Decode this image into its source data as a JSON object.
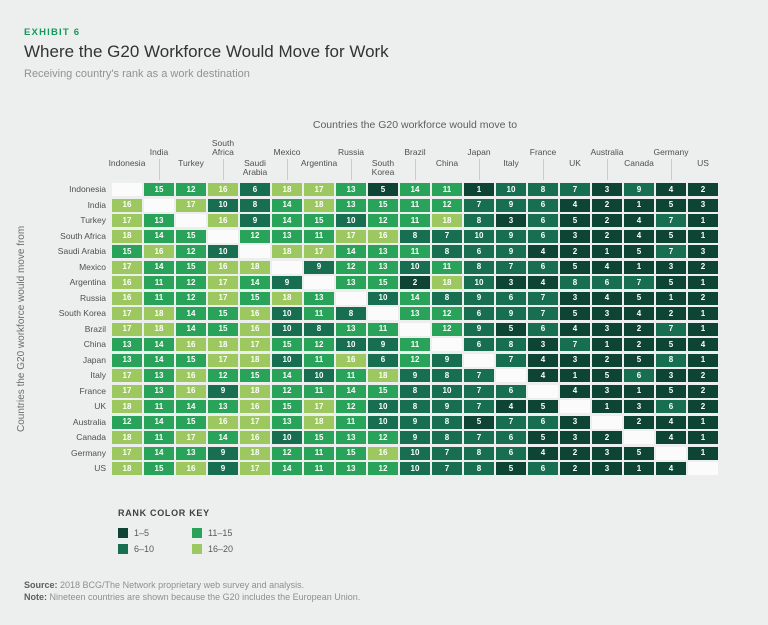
{
  "exhibit": {
    "eyebrow": "EXHIBIT 6"
  },
  "chart_data": {
    "type": "heatmap",
    "title": "Where the G20 Workforce Would Move for Work",
    "subtitle": "Receiving country's rank as a work destination",
    "x_axis_label": "Countries the G20 workforce would move to",
    "y_axis_label": "Countries the G20 workforce would move from",
    "legend_title": "RANK COLOR KEY",
    "color_bins": [
      {
        "label": "1–5",
        "min": 1,
        "max": 5,
        "color": "#0d4434"
      },
      {
        "label": "6–10",
        "min": 6,
        "max": 10,
        "color": "#176e50"
      },
      {
        "label": "11–15",
        "min": 11,
        "max": 15,
        "color": "#29a35a"
      },
      {
        "label": "16–20",
        "min": 16,
        "max": 20,
        "color": "#9dc75f"
      }
    ],
    "columns": [
      "Indonesia",
      "India",
      "Turkey",
      "South Africa",
      "Saudi Arabia",
      "Mexico",
      "Argentina",
      "Russia",
      "South Korea",
      "Brazil",
      "China",
      "Japan",
      "Italy",
      "France",
      "UK",
      "Australia",
      "Canada",
      "Germany",
      "US"
    ],
    "rows": [
      "Indonesia",
      "India",
      "Turkey",
      "South Africa",
      "Saudi Arabia",
      "Mexico",
      "Argentina",
      "Russia",
      "South Korea",
      "Brazil",
      "China",
      "Japan",
      "Italy",
      "France",
      "UK",
      "Australia",
      "Canada",
      "Germany",
      "US"
    ],
    "values": [
      [
        null,
        15,
        12,
        16,
        6,
        18,
        17,
        13,
        5,
        14,
        11,
        1,
        10,
        8,
        7,
        3,
        9,
        4,
        2
      ],
      [
        16,
        null,
        17,
        10,
        8,
        14,
        18,
        13,
        15,
        11,
        12,
        7,
        9,
        6,
        4,
        2,
        1,
        5,
        3
      ],
      [
        17,
        13,
        null,
        16,
        9,
        14,
        15,
        10,
        12,
        11,
        18,
        8,
        3,
        6,
        5,
        2,
        4,
        7,
        1
      ],
      [
        18,
        14,
        15,
        null,
        12,
        13,
        11,
        17,
        16,
        8,
        7,
        10,
        9,
        6,
        3,
        2,
        4,
        5,
        1
      ],
      [
        15,
        16,
        12,
        10,
        null,
        18,
        17,
        14,
        13,
        11,
        8,
        6,
        9,
        4,
        2,
        1,
        5,
        7,
        3
      ],
      [
        17,
        14,
        15,
        16,
        18,
        null,
        9,
        12,
        13,
        10,
        11,
        8,
        7,
        6,
        5,
        4,
        1,
        3,
        2
      ],
      [
        16,
        11,
        12,
        17,
        14,
        9,
        null,
        13,
        15,
        2,
        18,
        10,
        3,
        4,
        8,
        6,
        7,
        5,
        1
      ],
      [
        16,
        11,
        12,
        17,
        15,
        18,
        13,
        null,
        10,
        14,
        8,
        9,
        6,
        7,
        3,
        4,
        5,
        1,
        2
      ],
      [
        17,
        18,
        14,
        15,
        16,
        10,
        11,
        8,
        null,
        13,
        12,
        6,
        9,
        7,
        5,
        3,
        4,
        2,
        1
      ],
      [
        17,
        18,
        14,
        15,
        16,
        10,
        8,
        13,
        11,
        null,
        12,
        9,
        5,
        6,
        4,
        3,
        2,
        7,
        1
      ],
      [
        13,
        14,
        16,
        18,
        17,
        15,
        12,
        10,
        9,
        11,
        null,
        6,
        8,
        3,
        7,
        1,
        2,
        5,
        4
      ],
      [
        13,
        14,
        15,
        17,
        18,
        10,
        11,
        16,
        6,
        12,
        9,
        null,
        7,
        4,
        3,
        2,
        5,
        8,
        1
      ],
      [
        17,
        13,
        16,
        12,
        15,
        14,
        10,
        11,
        18,
        9,
        8,
        7,
        null,
        4,
        1,
        5,
        6,
        3,
        2
      ],
      [
        17,
        13,
        16,
        9,
        18,
        12,
        11,
        14,
        15,
        8,
        10,
        7,
        6,
        null,
        4,
        3,
        1,
        5,
        2
      ],
      [
        18,
        11,
        14,
        13,
        16,
        15,
        17,
        12,
        10,
        8,
        9,
        7,
        4,
        5,
        null,
        1,
        3,
        6,
        2
      ],
      [
        12,
        14,
        15,
        16,
        17,
        13,
        18,
        11,
        10,
        9,
        8,
        5,
        7,
        6,
        3,
        null,
        2,
        4,
        1
      ],
      [
        18,
        11,
        17,
        14,
        16,
        10,
        15,
        13,
        12,
        9,
        8,
        7,
        6,
        5,
        3,
        2,
        null,
        4,
        1
      ],
      [
        17,
        14,
        13,
        9,
        18,
        12,
        11,
        15,
        16,
        10,
        7,
        8,
        6,
        4,
        2,
        3,
        5,
        null,
        1
      ],
      [
        18,
        15,
        16,
        9,
        17,
        14,
        11,
        13,
        12,
        10,
        7,
        8,
        5,
        6,
        2,
        3,
        1,
        4,
        null
      ]
    ]
  },
  "footer": {
    "source_label": "Source:",
    "source_text": "2018 BCG/The Network proprietary web survey and analysis.",
    "note_label": "Note:",
    "note_text": "Nineteen countries are shown because the G20 includes the European Union."
  }
}
